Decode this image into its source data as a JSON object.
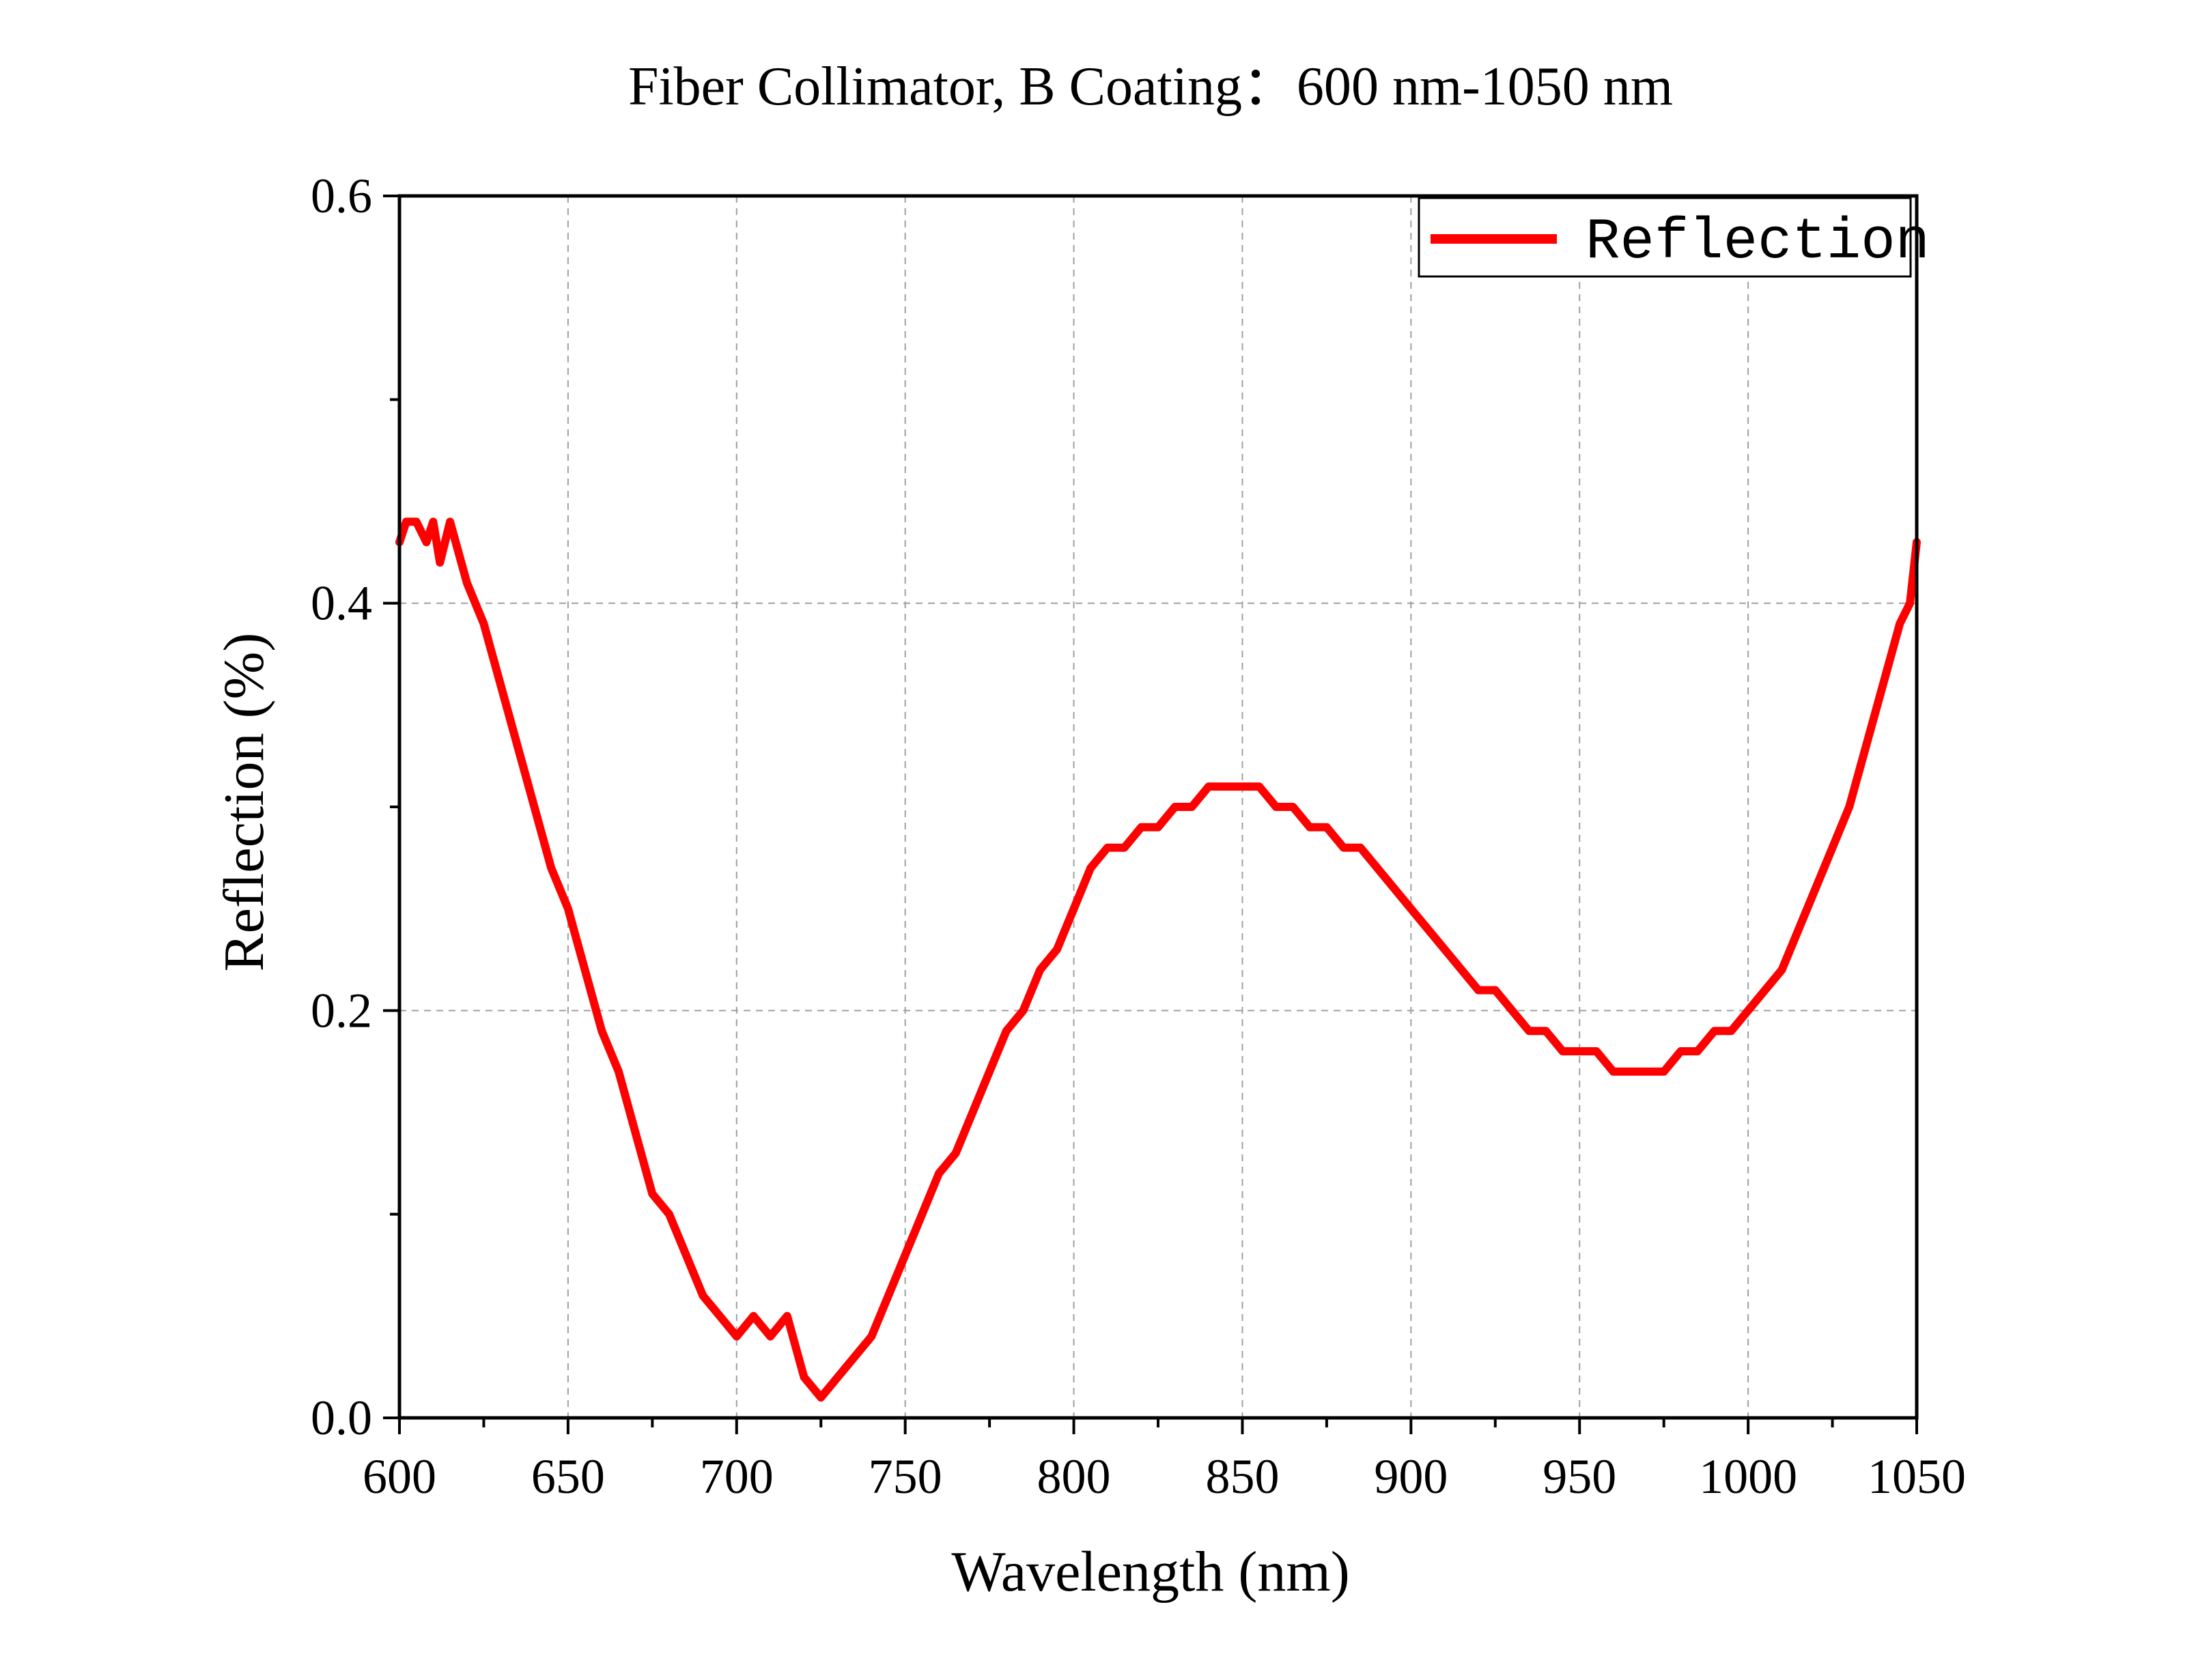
{
  "colors": {
    "series": "#ff0000",
    "axis": "#000000",
    "grid": "#a0a0a0",
    "background": "#ffffff"
  },
  "chart_data": {
    "type": "line",
    "title": "Fiber Collimator, B Coating：600 nm-1050 nm",
    "xlabel": "Wavelength (nm)",
    "ylabel": "Reflection (%)",
    "xlim": [
      600,
      1050
    ],
    "ylim": [
      0,
      0.6
    ],
    "x_ticks": [
      600,
      650,
      700,
      750,
      800,
      850,
      900,
      950,
      1000,
      1050
    ],
    "x_tick_labels": [
      "600",
      "650",
      "700",
      "750",
      "800",
      "850",
      "900",
      "950",
      "1000",
      "1050"
    ],
    "y_ticks": [
      0.0,
      0.2,
      0.4,
      0.6
    ],
    "y_tick_labels": [
      "0.0",
      "0.2",
      "0.4",
      "0.6"
    ],
    "grid": true,
    "legend": {
      "position": "top-right",
      "entries": [
        "Reflection"
      ]
    },
    "series": [
      {
        "name": "Reflection",
        "color": "#ff0000",
        "x": [
          600,
          602,
          605,
          608,
          610,
          612,
          615,
          620,
          625,
          630,
          635,
          640,
          645,
          650,
          655,
          660,
          665,
          670,
          675,
          680,
          685,
          690,
          695,
          700,
          705,
          710,
          715,
          720,
          725,
          730,
          735,
          740,
          745,
          750,
          755,
          760,
          765,
          770,
          775,
          780,
          785,
          790,
          795,
          800,
          805,
          810,
          815,
          820,
          825,
          830,
          835,
          840,
          845,
          850,
          853,
          855,
          860,
          865,
          870,
          875,
          880,
          885,
          890,
          895,
          900,
          905,
          910,
          915,
          920,
          925,
          930,
          935,
          940,
          945,
          950,
          955,
          960,
          965,
          970,
          975,
          980,
          985,
          990,
          995,
          1000,
          1005,
          1010,
          1015,
          1020,
          1025,
          1030,
          1035,
          1040,
          1045,
          1048,
          1050
        ],
        "y": [
          0.43,
          0.44,
          0.44,
          0.43,
          0.44,
          0.42,
          0.44,
          0.41,
          0.39,
          0.36,
          0.33,
          0.3,
          0.27,
          0.25,
          0.22,
          0.19,
          0.17,
          0.14,
          0.11,
          0.1,
          0.08,
          0.06,
          0.05,
          0.04,
          0.05,
          0.04,
          0.05,
          0.02,
          0.01,
          0.02,
          0.03,
          0.04,
          0.06,
          0.08,
          0.1,
          0.12,
          0.13,
          0.15,
          0.17,
          0.19,
          0.2,
          0.22,
          0.23,
          0.25,
          0.27,
          0.28,
          0.28,
          0.29,
          0.29,
          0.3,
          0.3,
          0.31,
          0.31,
          0.31,
          0.31,
          0.31,
          0.3,
          0.3,
          0.29,
          0.29,
          0.28,
          0.28,
          0.27,
          0.26,
          0.25,
          0.24,
          0.23,
          0.22,
          0.21,
          0.21,
          0.2,
          0.19,
          0.19,
          0.18,
          0.18,
          0.18,
          0.17,
          0.17,
          0.17,
          0.17,
          0.18,
          0.18,
          0.19,
          0.19,
          0.2,
          0.21,
          0.22,
          0.24,
          0.26,
          0.28,
          0.3,
          0.33,
          0.36,
          0.39,
          0.4,
          0.43
        ]
      }
    ]
  }
}
